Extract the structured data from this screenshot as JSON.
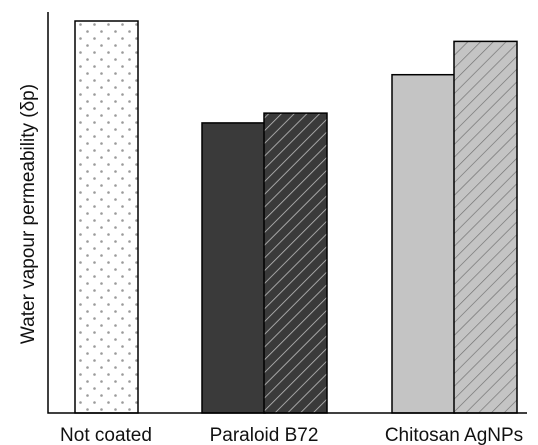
{
  "chart_data": {
    "type": "bar",
    "title": "",
    "xlabel": "",
    "ylabel": "Water vapour permeability (δp)",
    "categories": [
      "Not coated",
      "Paraloid B72",
      "Chitosan AgNPs"
    ],
    "bars": [
      {
        "category": "Not coated",
        "value": 100,
        "fill": "#ffffff",
        "pattern": "dots"
      },
      {
        "category": "Paraloid B72",
        "value": 74,
        "fill": "#3a3a3a",
        "pattern": "solid"
      },
      {
        "category": "Paraloid B72",
        "value": 76.5,
        "fill": "#3a3a3a",
        "pattern": "hatch"
      },
      {
        "category": "Chitosan AgNPs",
        "value": 86.3,
        "fill": "#c4c4c4",
        "pattern": "solid"
      },
      {
        "category": "Chitosan AgNPs",
        "value": 94.8,
        "fill": "#c4c4c4",
        "pattern": "hatch"
      }
    ],
    "ylim": [
      0,
      100
    ],
    "y_ticks_shown": false,
    "grid": false,
    "legend": "none"
  }
}
